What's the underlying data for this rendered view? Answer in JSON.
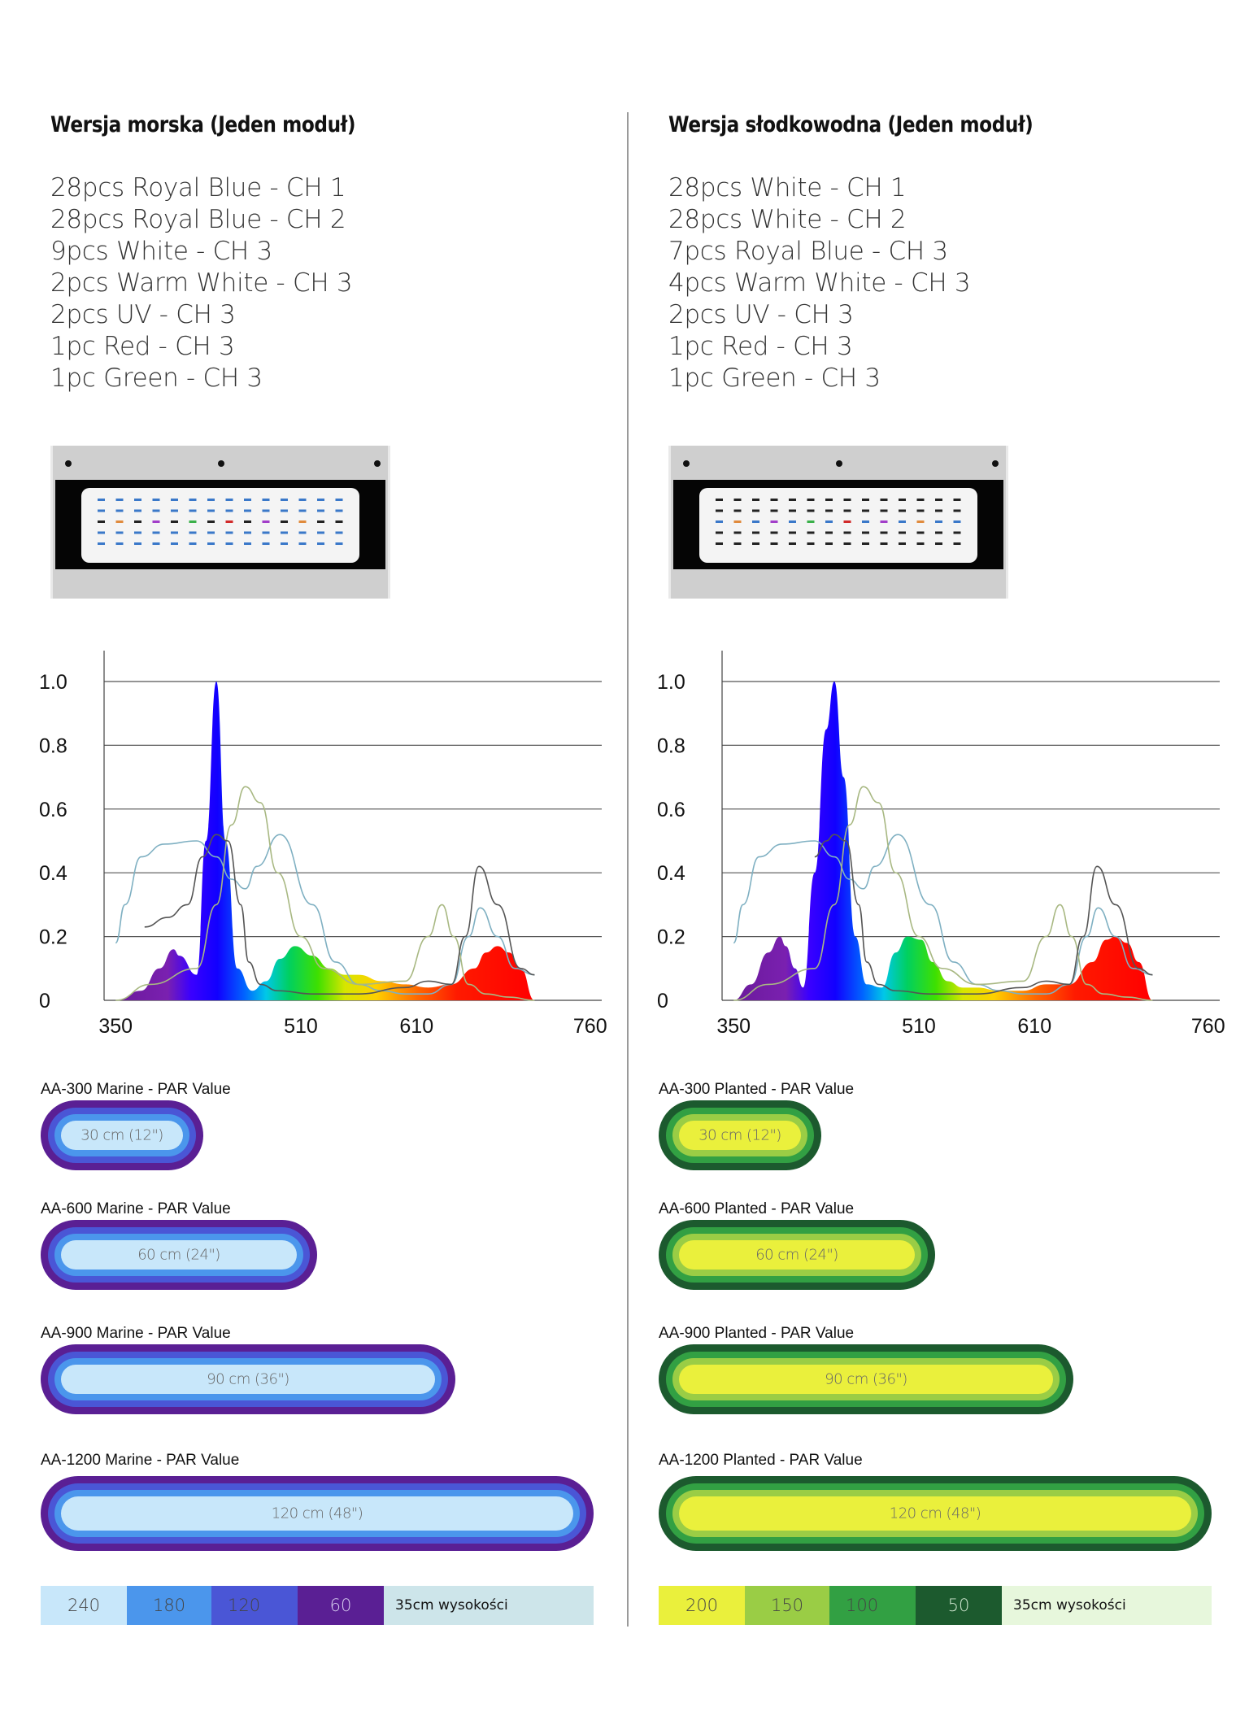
{
  "columns": [
    {
      "id": "marine",
      "title": "Wersja morska (Jeden moduł)",
      "leds": [
        "28pcs Royal Blue - CH 1",
        "28pcs Royal Blue - CH 2",
        "9pcs White - CH 3",
        "2pcs Warm White - CH 3",
        "2pcs UV - CH 3",
        "1pc Red - CH 3",
        "1pc Green - CH 3"
      ],
      "led_colors": [
        "#3a78c9",
        "#3a78c9",
        "#222222",
        "#e08a3c",
        "#a23ec9",
        "#d12a2a",
        "#3ab04a"
      ],
      "par_sections": [
        {
          "title": "AA-300 Marine - PAR Value",
          "size": "30 cm (12\")",
          "length_fraction": 0.25
        },
        {
          "title": "AA-600 Marine - PAR Value",
          "size": "60 cm (24\")",
          "length_fraction": 0.5
        },
        {
          "title": "AA-900 Marine - PAR Value",
          "size": "90 cm (36\")",
          "length_fraction": 0.75
        },
        {
          "title": "AA-1200 Marine - PAR Value",
          "size": "120 cm (48\")",
          "length_fraction": 1.0
        }
      ],
      "ring_colors": [
        "#5a1f94",
        "#4a56d6",
        "#4b96ec",
        "#c8e7fa"
      ],
      "legend": [
        {
          "value": "240",
          "color": "#c8e7fa"
        },
        {
          "value": "180",
          "color": "#4b96ec"
        },
        {
          "value": "120",
          "color": "#4a56d6"
        },
        {
          "value": "60",
          "color": "#5a1f94",
          "text_color": "#d8cff0"
        }
      ],
      "legend_note": "35cm wysokości",
      "legend_note_bg": "#cde5ea"
    },
    {
      "id": "freshwater",
      "title": "Wersja słodkowodna (Jeden moduł)",
      "leds": [
        "28pcs White - CH 1",
        "28pcs White - CH 2",
        "7pcs Royal Blue - CH 3",
        "4pcs Warm White - CH 3",
        "2pcs UV - CH 3",
        "1pc Red - CH 3",
        "1pc Green - CH 3"
      ],
      "led_colors": [
        "#222222",
        "#222222",
        "#3a78c9",
        "#e08a3c",
        "#a23ec9",
        "#d12a2a",
        "#3ab04a"
      ],
      "par_sections": [
        {
          "title": "AA-300 Planted - PAR Value",
          "size": "30 cm (12\")",
          "length_fraction": 0.25
        },
        {
          "title": "AA-600 Planted - PAR Value",
          "size": "60 cm (24\")",
          "length_fraction": 0.5
        },
        {
          "title": "AA-900 Planted - PAR Value",
          "size": "90 cm (36\")",
          "length_fraction": 0.75
        },
        {
          "title": "AA-1200 Planted - PAR Value",
          "size": "120 cm (48\")",
          "length_fraction": 1.0
        }
      ],
      "ring_colors": [
        "#1c5a2e",
        "#32a043",
        "#9acd45",
        "#eaf03c"
      ],
      "legend": [
        {
          "value": "200",
          "color": "#eaf03c"
        },
        {
          "value": "150",
          "color": "#9acd45"
        },
        {
          "value": "100",
          "color": "#32a043"
        },
        {
          "value": "50",
          "color": "#1c5a2e",
          "text_color": "#cfe6cf"
        }
      ],
      "legend_note": "35cm wysokości",
      "legend_note_bg": "#e7f7dc"
    }
  ],
  "chart_data": [
    {
      "type": "area",
      "title": "",
      "xlabel": "",
      "ylabel": "",
      "x_ticks": [
        "350",
        "510",
        "610",
        "760"
      ],
      "y_ticks": [
        "0",
        "0.2",
        "0.4",
        "0.6",
        "0.8",
        "1.0"
      ],
      "xlim": [
        340,
        770
      ],
      "ylim": [
        0,
        1.0
      ],
      "grid": true,
      "series": [
        {
          "fill": "spectrum",
          "x": [
            350,
            372,
            388,
            400,
            405,
            420,
            428,
            437,
            445,
            455,
            468,
            480,
            492,
            505,
            520,
            535,
            548,
            560,
            580,
            600,
            620,
            640,
            660,
            670,
            680,
            690,
            700,
            712
          ],
          "values": [
            0,
            0.03,
            0.1,
            0.16,
            0.14,
            0.08,
            0.5,
            1.0,
            0.5,
            0.1,
            0.03,
            0.06,
            0.13,
            0.17,
            0.14,
            0.1,
            0.08,
            0.08,
            0.06,
            0.05,
            0.04,
            0.05,
            0.1,
            0.15,
            0.17,
            0.15,
            0.1,
            0
          ]
        },
        {
          "color": "#7fb0c2",
          "x": [
            350,
            358,
            372,
            392,
            420,
            437,
            450,
            462,
            472,
            492,
            520,
            540,
            560,
            580,
            600,
            620,
            640,
            655,
            665,
            680,
            695,
            712
          ],
          "values": [
            0.18,
            0.3,
            0.45,
            0.49,
            0.5,
            0.45,
            0.38,
            0.35,
            0.42,
            0.52,
            0.3,
            0.12,
            0.05,
            0.03,
            0.02,
            0.02,
            0.05,
            0.2,
            0.29,
            0.2,
            0.1,
            0.08
          ]
        },
        {
          "color": "#a8b882",
          "x": [
            350,
            380,
            420,
            437,
            450,
            462,
            475,
            490,
            510,
            530,
            560,
            600,
            620,
            632,
            642,
            655,
            670,
            690,
            712
          ],
          "values": [
            0,
            0.05,
            0.1,
            0.3,
            0.55,
            0.67,
            0.62,
            0.4,
            0.2,
            0.1,
            0.05,
            0.06,
            0.2,
            0.3,
            0.2,
            0.05,
            0.02,
            0.01,
            0
          ]
        },
        {
          "color": "#555555",
          "x": [
            375,
            395,
            412,
            425,
            437,
            447,
            458,
            465,
            475,
            490,
            520,
            560,
            600,
            620,
            640,
            652,
            664,
            680,
            700,
            712
          ],
          "values": [
            0.23,
            0.26,
            0.3,
            0.45,
            0.52,
            0.5,
            0.3,
            0.12,
            0.05,
            0.03,
            0.02,
            0.02,
            0.04,
            0.06,
            0.05,
            0.2,
            0.42,
            0.3,
            0.1,
            0.08
          ]
        }
      ]
    },
    {
      "type": "area",
      "title": "",
      "xlabel": "",
      "ylabel": "",
      "x_ticks": [
        "350",
        "510",
        "610",
        "760"
      ],
      "y_ticks": [
        "0",
        "0.2",
        "0.4",
        "0.6",
        "0.8",
        "1.0"
      ],
      "xlim": [
        340,
        770
      ],
      "ylim": [
        0,
        1.0
      ],
      "grid": true,
      "series": [
        {
          "fill": "spectrum",
          "x": [
            350,
            365,
            380,
            390,
            395,
            403,
            410,
            420,
            430,
            437,
            445,
            455,
            465,
            478,
            490,
            500,
            512,
            522,
            535,
            548,
            560,
            580,
            600,
            620,
            640,
            660,
            672,
            680,
            690,
            700,
            712
          ],
          "values": [
            0,
            0.05,
            0.15,
            0.2,
            0.17,
            0.1,
            0.04,
            0.4,
            0.85,
            1.0,
            0.7,
            0.2,
            0.05,
            0.04,
            0.15,
            0.2,
            0.19,
            0.12,
            0.06,
            0.04,
            0.04,
            0.03,
            0.03,
            0.05,
            0.05,
            0.12,
            0.19,
            0.2,
            0.18,
            0.12,
            0
          ]
        },
        {
          "color": "#7fb0c2",
          "x": [
            350,
            358,
            372,
            392,
            420,
            437,
            450,
            462,
            472,
            492,
            520,
            540,
            560,
            580,
            600,
            620,
            640,
            655,
            665,
            680,
            695,
            712
          ],
          "values": [
            0.18,
            0.3,
            0.45,
            0.49,
            0.5,
            0.45,
            0.38,
            0.35,
            0.42,
            0.52,
            0.3,
            0.12,
            0.05,
            0.03,
            0.02,
            0.02,
            0.05,
            0.2,
            0.29,
            0.2,
            0.1,
            0.08
          ]
        },
        {
          "color": "#a8b882",
          "x": [
            350,
            380,
            420,
            437,
            450,
            462,
            475,
            490,
            510,
            530,
            560,
            600,
            620,
            632,
            642,
            655,
            670,
            690,
            712
          ],
          "values": [
            0,
            0.05,
            0.1,
            0.3,
            0.55,
            0.67,
            0.62,
            0.4,
            0.2,
            0.1,
            0.05,
            0.06,
            0.2,
            0.3,
            0.2,
            0.05,
            0.02,
            0.01,
            0
          ]
        },
        {
          "color": "#555555",
          "x": [
            420,
            430,
            437,
            447,
            458,
            465,
            475,
            490,
            520,
            560,
            600,
            620,
            640,
            652,
            664,
            680,
            700,
            712
          ],
          "values": [
            0.45,
            0.5,
            0.52,
            0.5,
            0.3,
            0.12,
            0.05,
            0.03,
            0.02,
            0.02,
            0.04,
            0.06,
            0.05,
            0.2,
            0.42,
            0.3,
            0.1,
            0.08
          ]
        }
      ]
    }
  ]
}
